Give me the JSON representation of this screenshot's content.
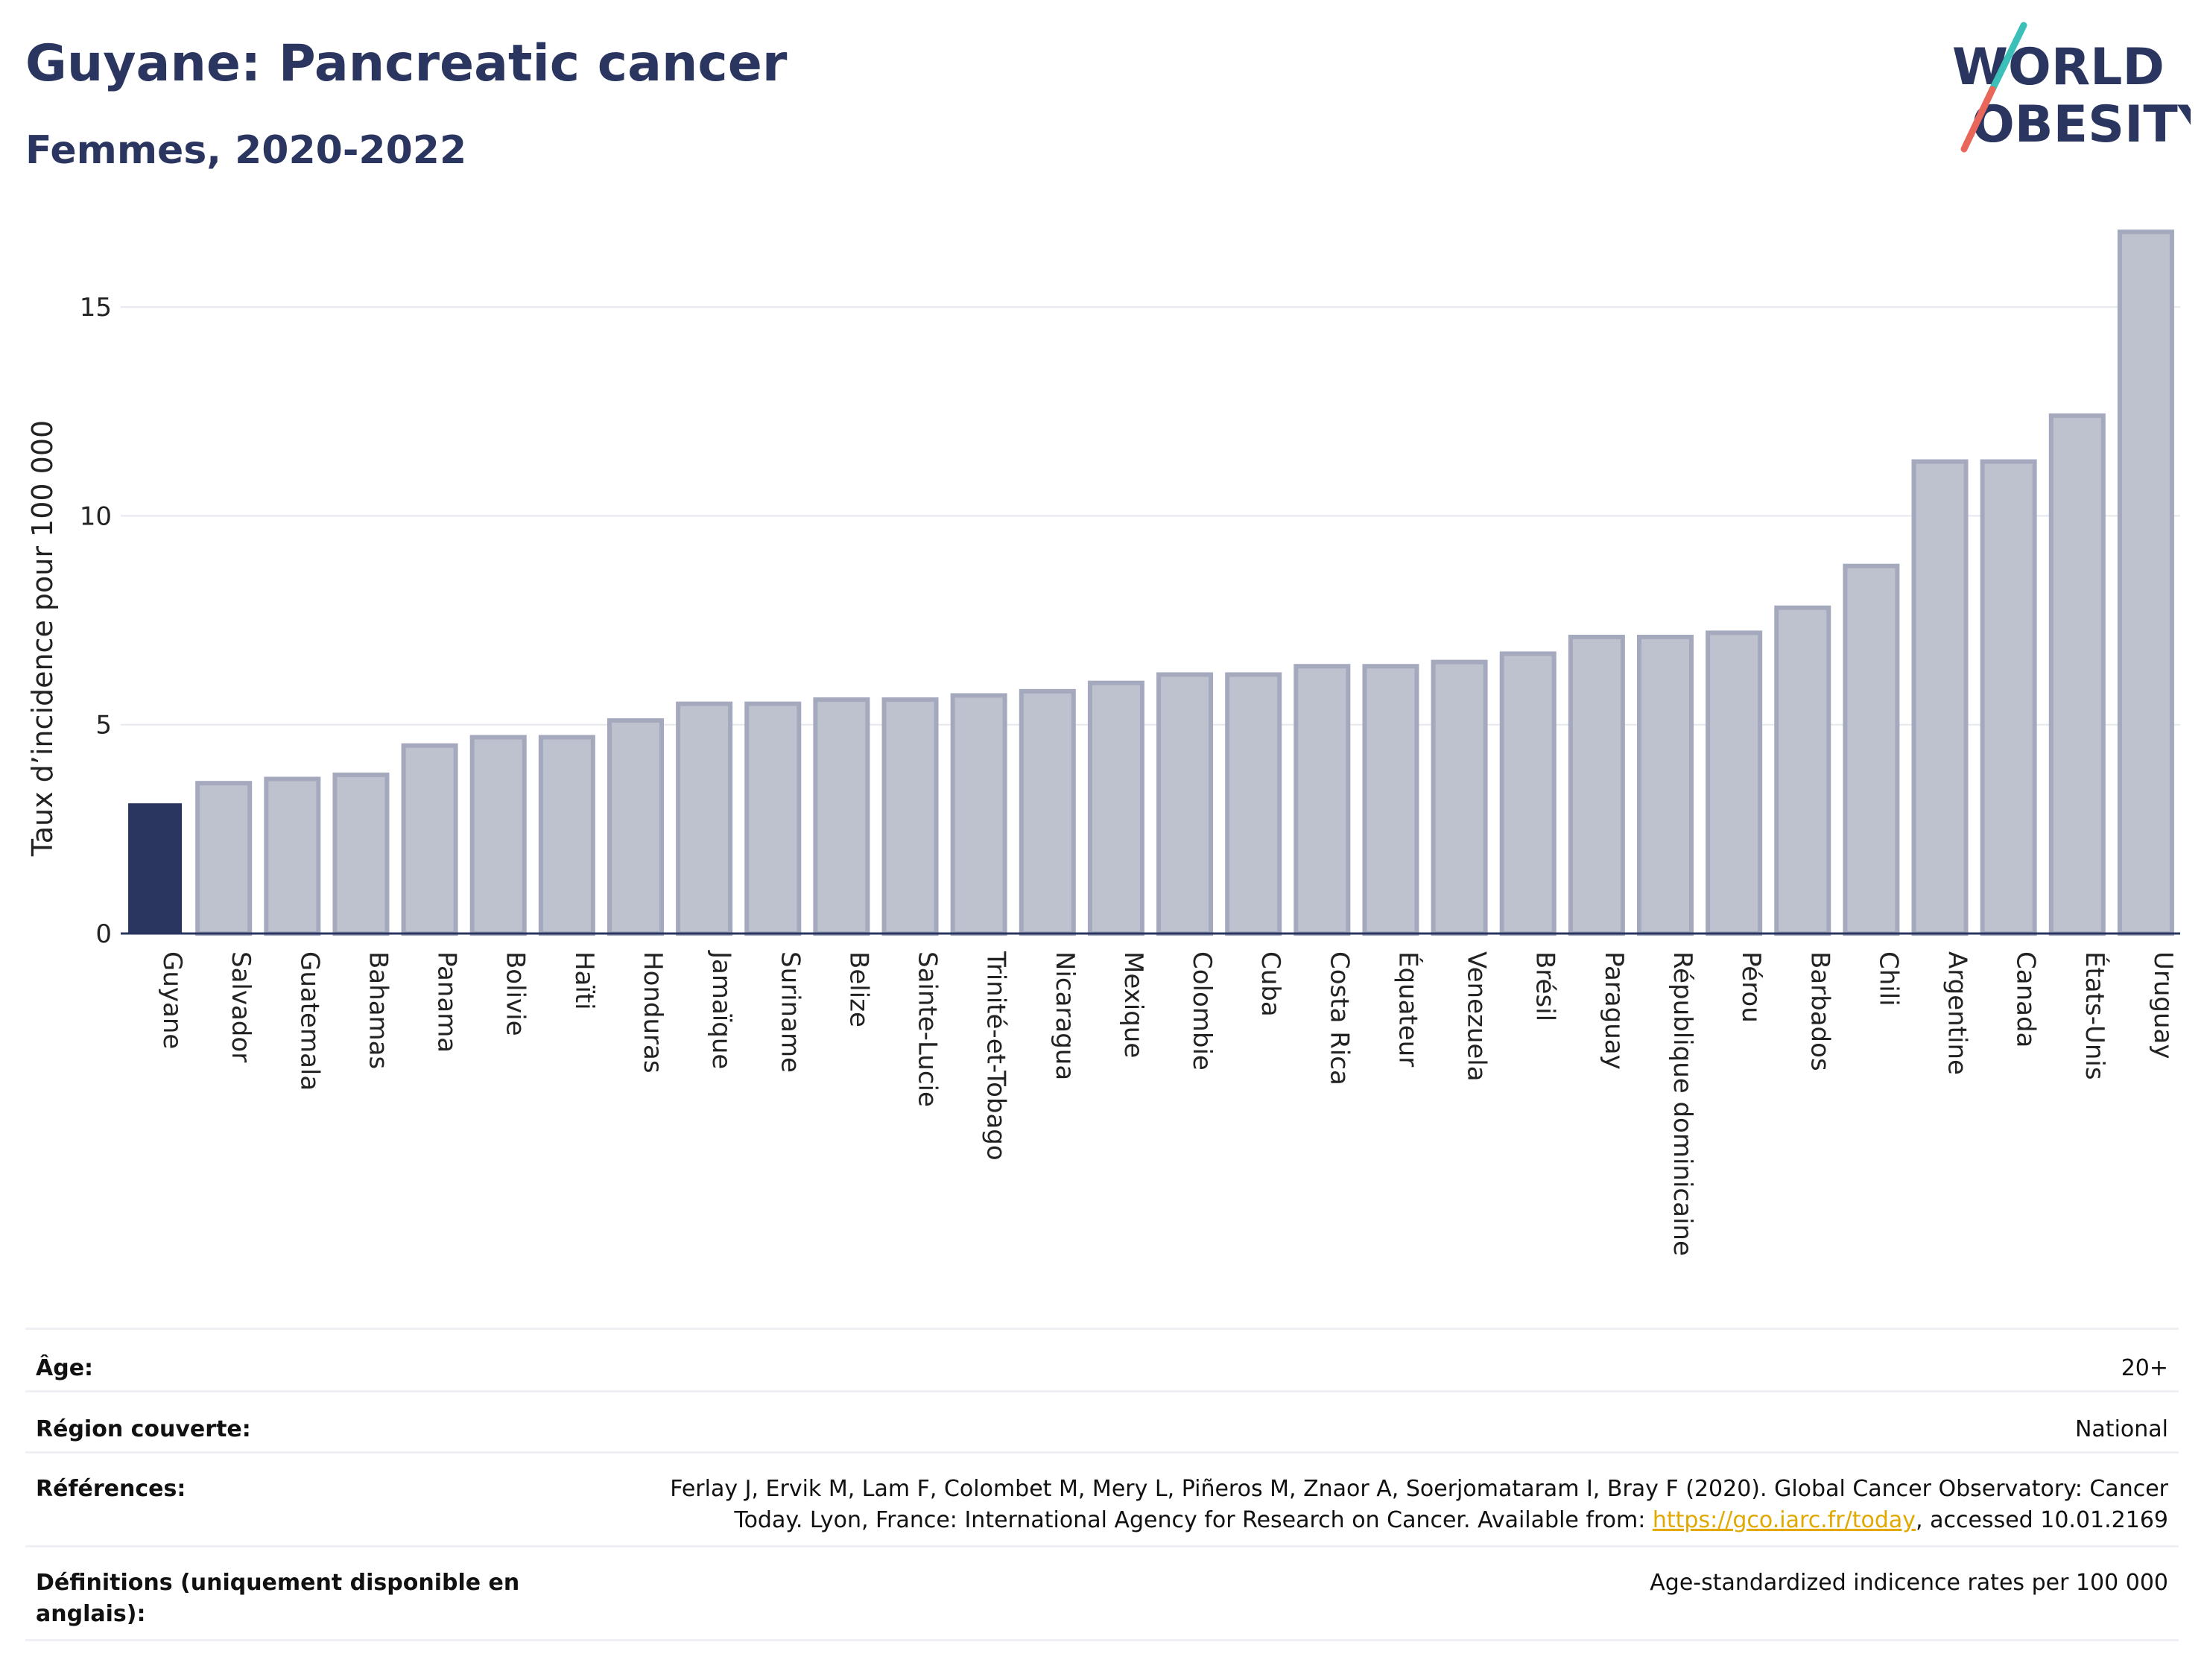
{
  "header": {
    "title": "Guyane: Pancreatic cancer",
    "subtitle": "Femmes, 2020-2022"
  },
  "logo": {
    "line1": "WORLD",
    "line2": "OBESITY"
  },
  "colors": {
    "highlight_bar": "#2a3560",
    "other_bar": "#bec2cf",
    "other_bar_border": "#a4a9bd",
    "text_dark": "#2a3560",
    "logo_teal": "#3bbfb8",
    "logo_red": "#e8665a",
    "link": "#e0a800"
  },
  "chart_data": {
    "type": "bar",
    "ylabel": "Taux d’incidence pour 100 000",
    "ylim": [
      0,
      17
    ],
    "yticks": [
      0,
      5,
      10,
      15
    ],
    "grid": true,
    "highlight": "Guyane",
    "categories": [
      "Guyane",
      "Salvador",
      "Guatemala",
      "Bahamas",
      "Panama",
      "Bolivie",
      "Haïti",
      "Honduras",
      "Jamaïque",
      "Suriname",
      "Belize",
      "Sainte-Lucie",
      "Trinité-et-Tobago",
      "Nicaragua",
      "Mexique",
      "Colombie",
      "Cuba",
      "Costa Rica",
      "Équateur",
      "Venezuela",
      "Brésil",
      "Paraguay",
      "République dominicaine",
      "Pérou",
      "Barbados",
      "Chili",
      "Argentine",
      "Canada",
      "États-Unis",
      "Uruguay"
    ],
    "values": [
      3.1,
      3.6,
      3.7,
      3.8,
      4.5,
      4.7,
      4.7,
      5.1,
      5.5,
      5.5,
      5.6,
      5.6,
      5.7,
      5.8,
      6.0,
      6.2,
      6.2,
      6.4,
      6.4,
      6.5,
      6.7,
      7.1,
      7.1,
      7.2,
      7.8,
      8.8,
      11.3,
      11.3,
      12.4,
      16.8
    ]
  },
  "meta": {
    "age_label": "Âge:",
    "age_value": "20+",
    "region_label": "Région couverte:",
    "region_value": "National",
    "refs_label": "Références:",
    "refs_line1": "Ferlay J, Ervik M, Lam F, Colombet M, Mery L, Piñeros M, Znaor A, Soerjomataram I, Bray F (2020). Global Cancer Observatory: Cancer",
    "refs_line2_pre": "Today. Lyon, France: International Agency for Research on Cancer. Available from: ",
    "refs_link": "https://gco.iarc.fr/today",
    "refs_line2_post": ", accessed 10.01.2169",
    "defs_label": "Définitions (uniquement disponible en anglais):",
    "defs_value": "Age-standardized indicence rates per 100 000"
  }
}
